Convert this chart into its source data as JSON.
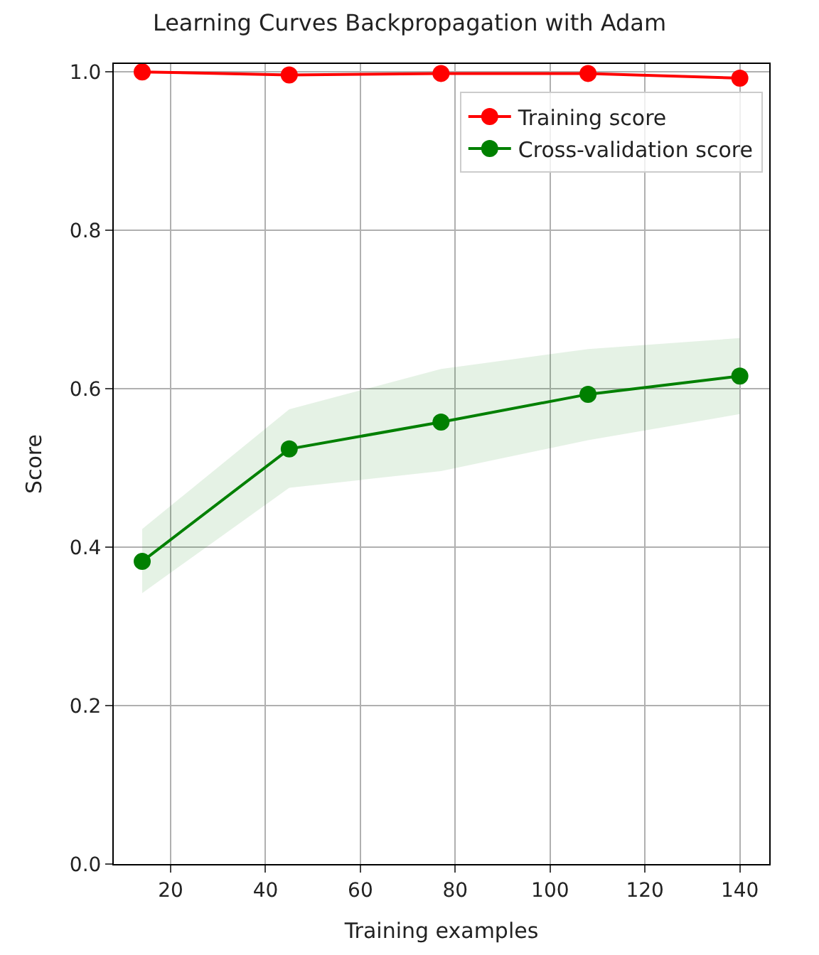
{
  "chart_data": {
    "type": "line",
    "title": "Learning Curves Backpropagation with Adam",
    "xlabel": "Training examples",
    "ylabel": "Score",
    "x": [
      14,
      45,
      77,
      108,
      140
    ],
    "series": [
      {
        "name": "Training score",
        "color": "#ff0000",
        "values": [
          1.0,
          0.996,
          0.998,
          0.998,
          0.992
        ]
      },
      {
        "name": "Cross-validation score",
        "color": "#008000",
        "values": [
          0.382,
          0.524,
          0.558,
          0.593,
          0.616
        ],
        "lower": [
          0.342,
          0.475,
          0.496,
          0.535,
          0.568
        ],
        "upper": [
          0.423,
          0.574,
          0.625,
          0.65,
          0.664
        ]
      }
    ],
    "xlim": [
      8,
      146.2
    ],
    "ylim": [
      0,
      1.01
    ],
    "xticks": [
      20,
      40,
      60,
      80,
      100,
      120,
      140
    ],
    "yticks": [
      {
        "value": 0,
        "label": "0.0"
      },
      {
        "value": 0.2,
        "label": "0.2"
      },
      {
        "value": 0.4,
        "label": "0.4"
      },
      {
        "value": 0.6,
        "label": "0.6"
      },
      {
        "value": 0.8,
        "label": "0.8"
      },
      {
        "value": 1.0,
        "label": "1.0"
      }
    ],
    "grid": true,
    "legend": "top right",
    "marker": "circle",
    "line_style": "solid"
  }
}
